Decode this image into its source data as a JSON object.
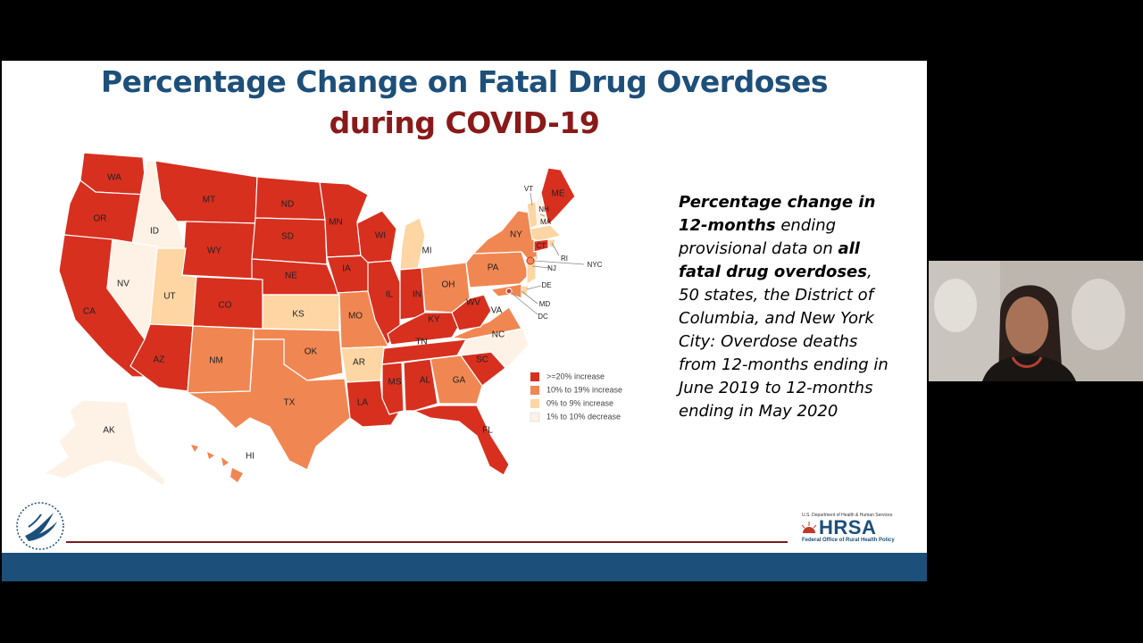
{
  "slide": {
    "title_line1": "Percentage Change on Fatal Drug Overdoses",
    "title_line2": "during COVID-19",
    "description": {
      "p1": "Percentage change in 12-months",
      "p2": " ending provisional data on ",
      "p3": "all fatal drug overdoses",
      "p4": ", 50 states, the District of Columbia, and New York City: Overdose deaths from 12-months ending in June 2019 to 12-months ending in May 2020"
    },
    "legend": [
      {
        "label": ">=20% increase",
        "color": "#d7301f"
      },
      {
        "label": "10% to 19% increase",
        "color": "#f08752"
      },
      {
        "label": "0% to 9% increase",
        "color": "#fdd6a4"
      },
      {
        "label": "1% to 10% decrease",
        "color": "#fef2e6"
      }
    ],
    "state_labels": [
      "WA",
      "OR",
      "CA",
      "ID",
      "NV",
      "MT",
      "WY",
      "UT",
      "AZ",
      "CO",
      "NM",
      "ND",
      "SD",
      "NE",
      "KS",
      "OK",
      "TX",
      "MN",
      "IA",
      "MO",
      "AR",
      "LA",
      "WI",
      "IL",
      "MI",
      "IN",
      "OH",
      "KY",
      "TN",
      "MS",
      "AL",
      "GA",
      "FL",
      "SC",
      "NC",
      "VA",
      "WV",
      "PA",
      "NY",
      "VT",
      "NH",
      "ME",
      "MA",
      "RI",
      "CT",
      "NJ",
      "NYC",
      "DE",
      "MD",
      "DC",
      "AK",
      "HI"
    ],
    "hrsa": {
      "dept": "U.S. Department of Health & Human Services",
      "name": "HRSA",
      "office": "Federal Office of Rural Health Policy"
    }
  }
}
